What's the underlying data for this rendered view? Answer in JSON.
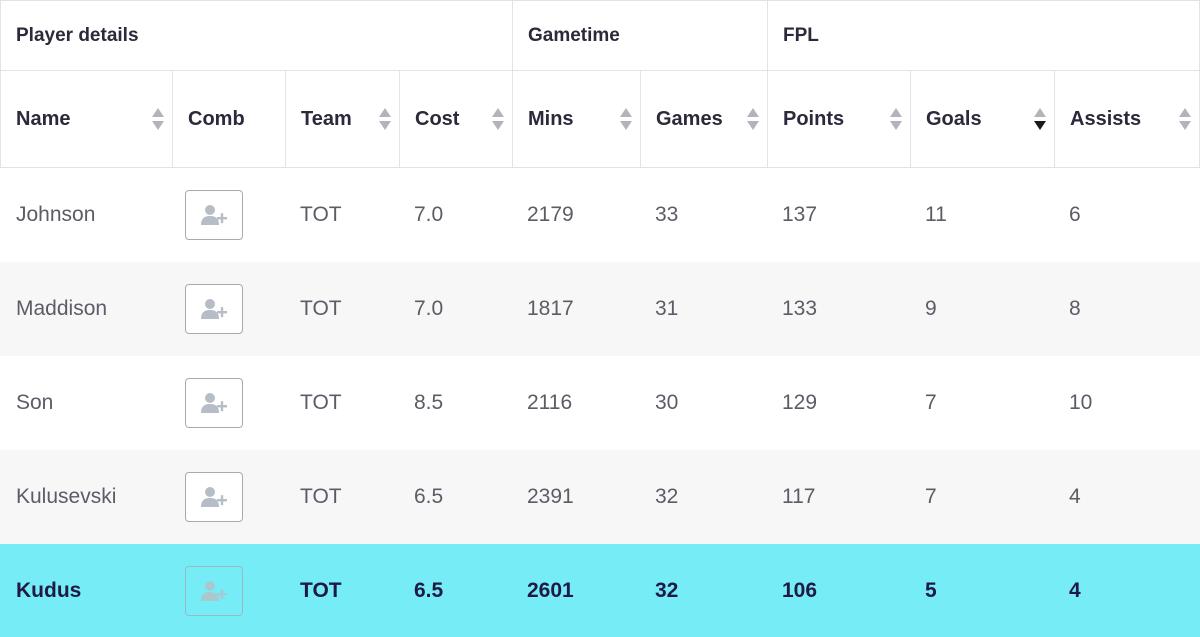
{
  "groups": {
    "player_details": "Player details",
    "gametime": "Gametime",
    "fpl": "FPL"
  },
  "columns": {
    "name": "Name",
    "comb": "Comb",
    "team": "Team",
    "cost": "Cost",
    "mins": "Mins",
    "games": "Games",
    "points": "Points",
    "goals": "Goals",
    "assists": "Assists"
  },
  "sort": {
    "active_column": "Goals",
    "direction": "descending"
  },
  "icons": {
    "sort": "sort-arrows-icon",
    "add_player": "add-player-icon"
  },
  "colors": {
    "highlight_row": "#76ecf7",
    "alt_row": "#f7f7f8",
    "header_text": "#2a2a3a",
    "highlight_text": "#1f1a45"
  },
  "rows": [
    {
      "name": "Johnson",
      "team": "TOT",
      "cost": "7.0",
      "mins": "2179",
      "games": "33",
      "points": "137",
      "goals": "11",
      "assists": "6"
    },
    {
      "name": "Maddison",
      "team": "TOT",
      "cost": "7.0",
      "mins": "1817",
      "games": "31",
      "points": "133",
      "goals": "9",
      "assists": "8"
    },
    {
      "name": "Son",
      "team": "TOT",
      "cost": "8.5",
      "mins": "2116",
      "games": "30",
      "points": "129",
      "goals": "7",
      "assists": "10"
    },
    {
      "name": "Kulusevski",
      "team": "TOT",
      "cost": "6.5",
      "mins": "2391",
      "games": "32",
      "points": "117",
      "goals": "7",
      "assists": "4"
    },
    {
      "name": "Kudus",
      "team": "TOT",
      "cost": "6.5",
      "mins": "2601",
      "games": "32",
      "points": "106",
      "goals": "5",
      "assists": "4",
      "highlighted": true
    }
  ]
}
